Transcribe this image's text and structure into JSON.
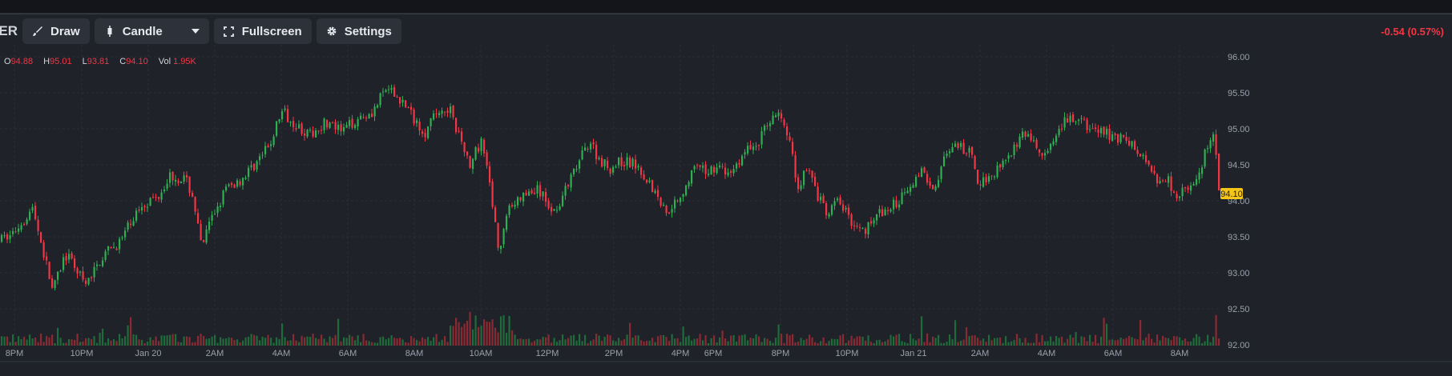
{
  "toolbar": {
    "symbol": "ER",
    "draw_label": "Draw",
    "chart_type_label": "Candle",
    "fullscreen_label": "Fullscreen",
    "settings_label": "Settings",
    "icons": [
      "brush-icon",
      "candlestick-icon",
      "chevron-down-icon",
      "fullscreen-icon",
      "gear-icon"
    ]
  },
  "change_text": "-0.54 (0.57%)",
  "ohlc": {
    "o_label": "O",
    "o_value": "94.88",
    "h_label": "H",
    "h_value": "95.01",
    "l_label": "L",
    "l_value": "93.81",
    "c_label": "C",
    "c_value": "94.10",
    "vol_label": "Vol",
    "vol_value": "1.95K"
  },
  "colors": {
    "up": "#2fae52",
    "down": "#f23645",
    "price_tag": "#f5c518",
    "grid": "#2b2f38",
    "background": "#1f2229"
  },
  "chart_data": {
    "type": "candlestick",
    "y_ticks": [
      "96.00",
      "95.50",
      "95.00",
      "94.50",
      "94.00",
      "93.50",
      "93.00",
      "92.50",
      "92.00"
    ],
    "ylim": [
      92.0,
      96.0
    ],
    "x_ticks": [
      "8PM",
      "10PM",
      "Jan 20",
      "2AM",
      "4AM",
      "6AM",
      "8AM",
      "10AM",
      "12PM",
      "2PM",
      "4PM",
      "6PM",
      "8PM",
      "10PM",
      "Jan 21",
      "2AM",
      "4AM",
      "6AM",
      "8AM"
    ],
    "last_price": "94.10",
    "grid": true,
    "path": [
      [
        0,
        93.45
      ],
      [
        15,
        93.55
      ],
      [
        40,
        93.9
      ],
      [
        55,
        93.2
      ],
      [
        65,
        92.75
      ],
      [
        80,
        93.25
      ],
      [
        95,
        93.05
      ],
      [
        105,
        92.8
      ],
      [
        125,
        93.2
      ],
      [
        150,
        93.45
      ],
      [
        175,
        93.95
      ],
      [
        195,
        94.05
      ],
      [
        210,
        94.35
      ],
      [
        230,
        94.3
      ],
      [
        240,
        94.05
      ],
      [
        250,
        93.35
      ],
      [
        265,
        93.8
      ],
      [
        280,
        94.15
      ],
      [
        300,
        94.3
      ],
      [
        320,
        94.55
      ],
      [
        335,
        94.75
      ],
      [
        350,
        95.25
      ],
      [
        365,
        95.1
      ],
      [
        385,
        94.9
      ],
      [
        405,
        95.1
      ],
      [
        425,
        94.95
      ],
      [
        445,
        95.15
      ],
      [
        465,
        95.25
      ],
      [
        480,
        95.55
      ],
      [
        500,
        95.4
      ],
      [
        515,
        95.15
      ],
      [
        530,
        94.95
      ],
      [
        545,
        95.25
      ],
      [
        560,
        95.3
      ],
      [
        570,
        94.95
      ],
      [
        585,
        94.5
      ],
      [
        600,
        94.85
      ],
      [
        612,
        94.1
      ],
      [
        622,
        93.3
      ],
      [
        635,
        93.9
      ],
      [
        650,
        94.05
      ],
      [
        670,
        94.15
      ],
      [
        690,
        93.85
      ],
      [
        705,
        94.15
      ],
      [
        720,
        94.5
      ],
      [
        735,
        94.85
      ],
      [
        745,
        94.6
      ],
      [
        760,
        94.45
      ],
      [
        775,
        94.55
      ],
      [
        795,
        94.5
      ],
      [
        815,
        94.15
      ],
      [
        830,
        93.85
      ],
      [
        850,
        94.1
      ],
      [
        865,
        94.45
      ],
      [
        880,
        94.4
      ],
      [
        895,
        94.5
      ],
      [
        905,
        94.35
      ],
      [
        915,
        94.45
      ],
      [
        930,
        94.7
      ],
      [
        945,
        94.8
      ],
      [
        960,
        95.15
      ],
      [
        972,
        95.2
      ],
      [
        985,
        94.8
      ],
      [
        995,
        94.15
      ],
      [
        1005,
        94.5
      ],
      [
        1015,
        94.2
      ],
      [
        1030,
        93.8
      ],
      [
        1045,
        94.0
      ],
      [
        1060,
        93.75
      ],
      [
        1075,
        93.55
      ],
      [
        1090,
        93.8
      ],
      [
        1105,
        93.85
      ],
      [
        1120,
        94.0
      ],
      [
        1135,
        94.25
      ],
      [
        1150,
        94.4
      ],
      [
        1165,
        94.2
      ],
      [
        1180,
        94.65
      ],
      [
        1195,
        94.75
      ],
      [
        1210,
        94.65
      ],
      [
        1220,
        94.25
      ],
      [
        1235,
        94.35
      ],
      [
        1250,
        94.55
      ],
      [
        1265,
        94.75
      ],
      [
        1280,
        94.95
      ],
      [
        1300,
        94.6
      ],
      [
        1315,
        94.8
      ],
      [
        1330,
        95.15
      ],
      [
        1345,
        95.1
      ],
      [
        1360,
        95.0
      ],
      [
        1375,
        94.95
      ],
      [
        1390,
        94.9
      ],
      [
        1405,
        94.85
      ],
      [
        1420,
        94.65
      ],
      [
        1435,
        94.5
      ],
      [
        1445,
        94.25
      ],
      [
        1455,
        94.35
      ],
      [
        1465,
        94.1
      ],
      [
        1480,
        94.15
      ],
      [
        1495,
        94.3
      ],
      [
        1505,
        94.75
      ],
      [
        1515,
        94.9
      ],
      [
        1520,
        94.1
      ]
    ]
  }
}
